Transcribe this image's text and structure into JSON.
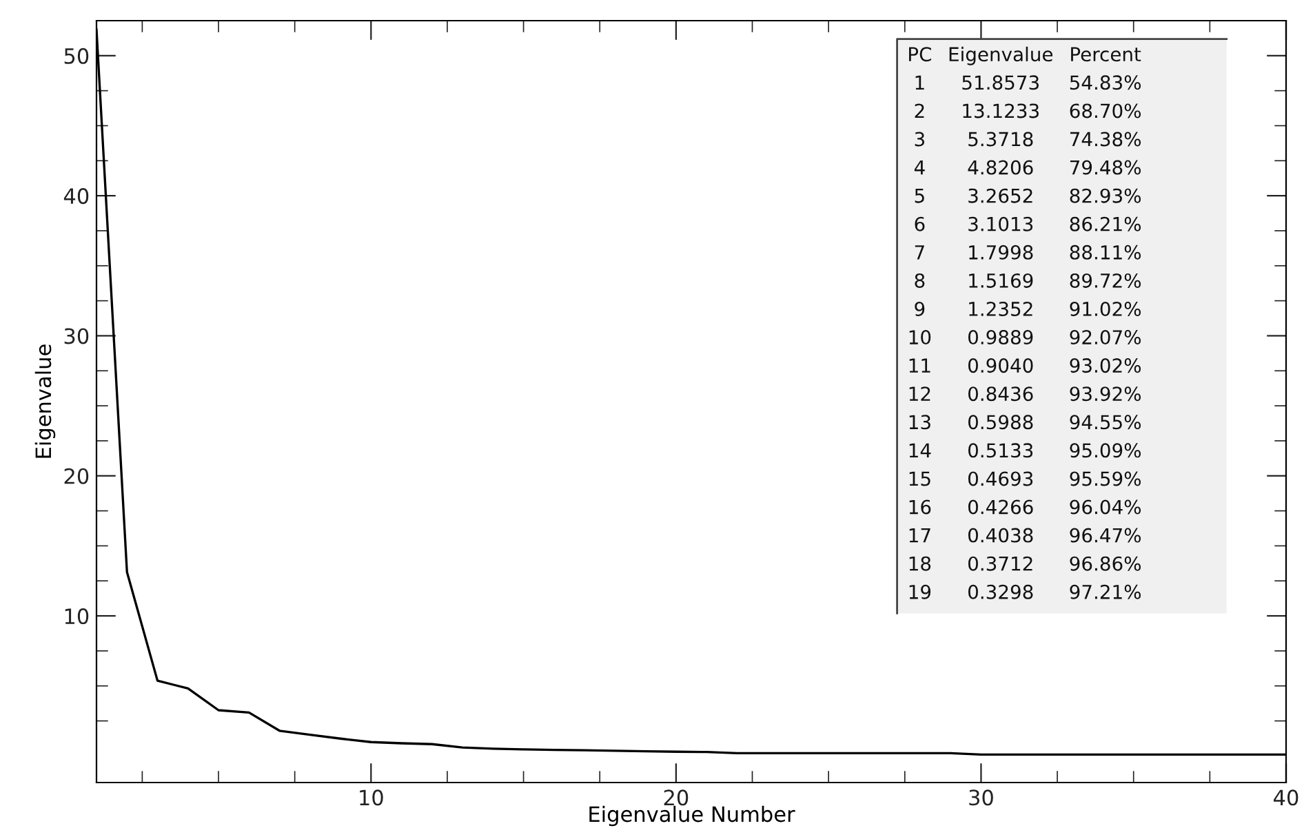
{
  "chart_data": {
    "type": "line",
    "xlabel": "Eigenvalue Number",
    "ylabel": "Eigenvalue",
    "color": "#000000",
    "x": [
      1,
      2,
      3,
      4,
      5,
      6,
      7,
      8,
      9,
      10,
      11,
      12,
      13,
      14,
      15,
      16,
      17,
      18,
      19,
      20,
      21,
      22,
      23,
      24,
      25,
      26,
      27,
      28,
      29,
      30,
      31,
      32,
      33,
      34,
      35,
      36,
      37,
      38,
      39,
      40
    ],
    "values": [
      51.8573,
      13.1233,
      5.3718,
      4.8206,
      3.2652,
      3.1013,
      1.7998,
      1.5169,
      1.2352,
      0.9889,
      0.904,
      0.8436,
      0.5988,
      0.5133,
      0.4693,
      0.4266,
      0.4038,
      0.3712,
      0.3298,
      0.3,
      0.28,
      0.2,
      0.2,
      0.2,
      0.2,
      0.2,
      0.2,
      0.2,
      0.2,
      0.1,
      0.1,
      0.1,
      0.1,
      0.1,
      0.1,
      0.1,
      0.1,
      0.1,
      0.1,
      0.1
    ],
    "xlim": [
      1,
      40
    ],
    "ylim": [
      -1.9,
      52.5
    ],
    "xticks": [
      {
        "value": 2.5,
        "label": null
      },
      {
        "value": 5,
        "label": null
      },
      {
        "value": 7.5,
        "label": null
      },
      10,
      {
        "value": 12.5,
        "label": null
      },
      {
        "value": 15,
        "label": null
      },
      {
        "value": 17.5,
        "label": null
      },
      20,
      {
        "value": 22.5,
        "label": null
      },
      {
        "value": 25,
        "label": null
      },
      {
        "value": 27.5,
        "label": null
      },
      30,
      {
        "value": 32.5,
        "label": null
      },
      {
        "value": 35,
        "label": null
      },
      {
        "value": 37.5,
        "label": null
      },
      40
    ],
    "yticks": [
      {
        "value": 2.5,
        "label": null
      },
      {
        "value": 5,
        "label": null
      },
      {
        "value": 7.5,
        "label": null
      },
      10,
      {
        "value": 12.5,
        "label": null
      },
      {
        "value": 15,
        "label": null
      },
      {
        "value": 17.5,
        "label": null
      },
      20,
      {
        "value": 22.5,
        "label": null
      },
      {
        "value": 25,
        "label": null
      },
      {
        "value": 27.5,
        "label": null
      },
      30,
      {
        "value": 32.5,
        "label": null
      },
      {
        "value": 35,
        "label": null
      },
      {
        "value": 37.5,
        "label": null
      },
      40,
      {
        "value": 42.5,
        "label": null
      },
      {
        "value": 45,
        "label": null
      },
      {
        "value": 47.5,
        "label": null
      },
      50
    ],
    "grid": false,
    "annotations": [
      "PC Eigenvalue Percent",
      "1 51.8573 54.83%",
      "2 13.1233 68.70%",
      "3 5.3718 74.38%",
      "4 4.8206 79.48%",
      "5 3.2652 82.93%",
      "6 3.1013 86.21%",
      "7 1.7998 88.11%",
      "8 1.5169 89.72%",
      "9 1.2352 91.02%",
      "10 0.9889 92.07%",
      "11 0.9040 93.02%",
      "12 0.8436 93.92%",
      "13 0.5988 94.55%",
      "14 0.5133 95.09%",
      "15 0.4693 95.59%",
      "16 0.4266 96.04%",
      "17 0.4038 96.47%",
      "18 0.3712 96.86%",
      "19 0.3298 97.21%"
    ]
  }
}
